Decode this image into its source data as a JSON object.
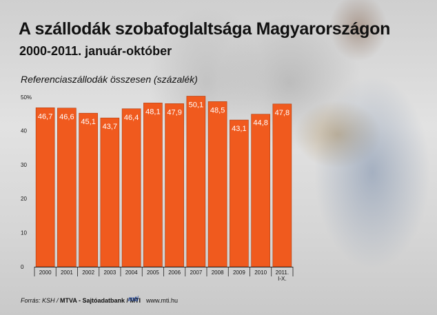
{
  "header": {
    "title": "A szállodák szobafoglaltsága Magyarországon",
    "subtitle": "2000-2011. január-október"
  },
  "footer": {
    "source": "Forrás: KSH / ",
    "agency": "MTVA - Sajtóadatbank / MTI",
    "logo": "mti",
    "url": "www.mti.hu"
  },
  "colors": {
    "bar": "#f05a1e",
    "bar_edge": "#b13a0a",
    "axis": "#222222"
  },
  "chart_data": {
    "type": "bar",
    "title": "A szállodák szobafoglaltsága Magyarországon",
    "subtitle": "2000-2011. január-október",
    "ylabel": "Referenciaszállodák összesen (százalék)",
    "xlabel": "",
    "categories": [
      "2000",
      "2001",
      "2002",
      "2003",
      "2004",
      "2005",
      "2006",
      "2007",
      "2008",
      "2009",
      "2010",
      "2011. I-X."
    ],
    "values": [
      46.7,
      46.6,
      45.1,
      43.7,
      46.4,
      48.1,
      47.9,
      50.1,
      48.5,
      43.1,
      44.8,
      47.8
    ],
    "value_labels": [
      "46,7",
      "46,6",
      "45,1",
      "43,7",
      "46,4",
      "48,1",
      "47,9",
      "50,1",
      "48,5",
      "43,1",
      "44,8",
      "47,8"
    ],
    "yticks": [
      "0",
      "10",
      "20",
      "30",
      "40",
      "50%"
    ],
    "ytick_values": [
      0,
      10,
      20,
      30,
      40,
      50
    ],
    "ylim": [
      0,
      50
    ],
    "grid": false,
    "legend": "none"
  }
}
